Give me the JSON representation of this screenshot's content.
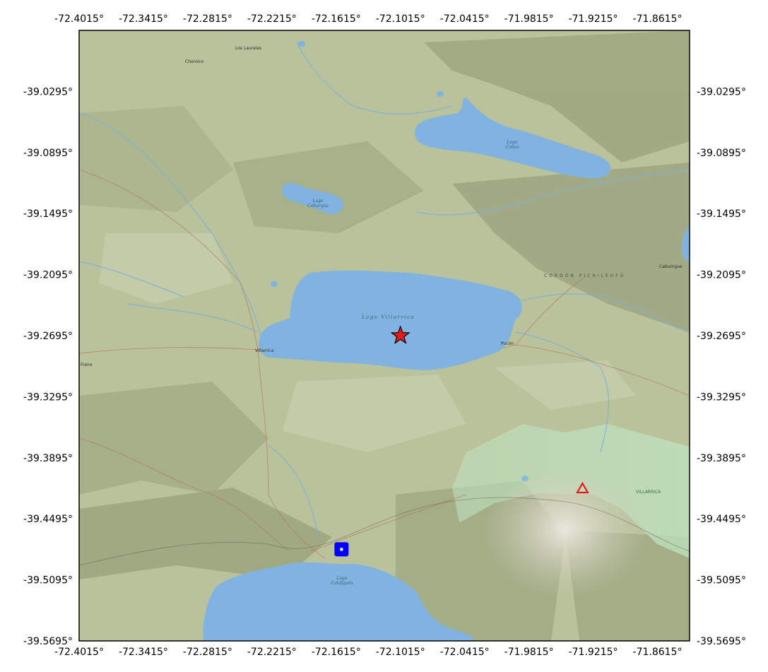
{
  "map": {
    "extent": {
      "lon_min": -72.4015,
      "lon_max": -71.8315,
      "lat_min": -39.5695,
      "lat_max": -38.9695
    },
    "x_ticks": {
      "values": [
        -72.4015,
        -72.3415,
        -72.2815,
        -72.2215,
        -72.1615,
        -72.1015,
        -72.0415,
        -71.9815,
        -71.9215,
        -71.8615
      ],
      "labels": [
        "-72.4015°",
        "-72.3415°",
        "-72.2815°",
        "-72.2215°",
        "-72.1615°",
        "-72.1015°",
        "-72.0415°",
        "-71.9815°",
        "-71.9215°",
        "-71.8615°"
      ]
    },
    "y_ticks": {
      "values": [
        -39.0295,
        -39.0895,
        -39.1495,
        -39.2095,
        -39.2695,
        -39.3295,
        -39.3895,
        -39.4495,
        -39.5095,
        -39.5695
      ],
      "labels": [
        "-39.0295°",
        "-39.0895°",
        "-39.1495°",
        "-39.2095°",
        "-39.2695°",
        "-39.3295°",
        "-39.3895°",
        "-39.4495°",
        "-39.5095°",
        "-39.5695°"
      ]
    },
    "basemap": "terrain-shaded-relief",
    "colors": {
      "land": "#b9c29a",
      "water": "#80b3df",
      "park": "#bfe3c0",
      "river": "#7fb0d8",
      "road": "#b37a5e",
      "marker_red": "#e31b1b",
      "marker_blue": "#0000ff"
    },
    "lakes": [
      {
        "id": "villarrica",
        "label": "Lago Villarrica"
      },
      {
        "id": "caburgua",
        "label_line1": "Lago",
        "label_line2": "Caburgua"
      },
      {
        "id": "colico",
        "label_line1": "Lago",
        "label_line2": "Colico"
      },
      {
        "id": "calafquen",
        "label_line1": "Lago",
        "label_line2": "Calafquén"
      }
    ],
    "places": [
      "Villarrica",
      "Pucón",
      "Choroico",
      "Los Laureles",
      "Cabumgue",
      "Freire"
    ],
    "park_label": "VILLARRICA",
    "ridge_label": "CORDÓN PICHILEUFÚ",
    "markers": [
      {
        "id": "epicenter",
        "type": "star",
        "color": "#e31b1b",
        "lon": -72.1015,
        "lat": -39.2695
      },
      {
        "id": "volcano",
        "type": "triangle",
        "color": "#e31b1b",
        "lon": -71.9315,
        "lat": -39.4195
      },
      {
        "id": "station",
        "type": "square",
        "color": "#0000ff",
        "lon": -72.1565,
        "lat": -39.4795
      }
    ]
  }
}
